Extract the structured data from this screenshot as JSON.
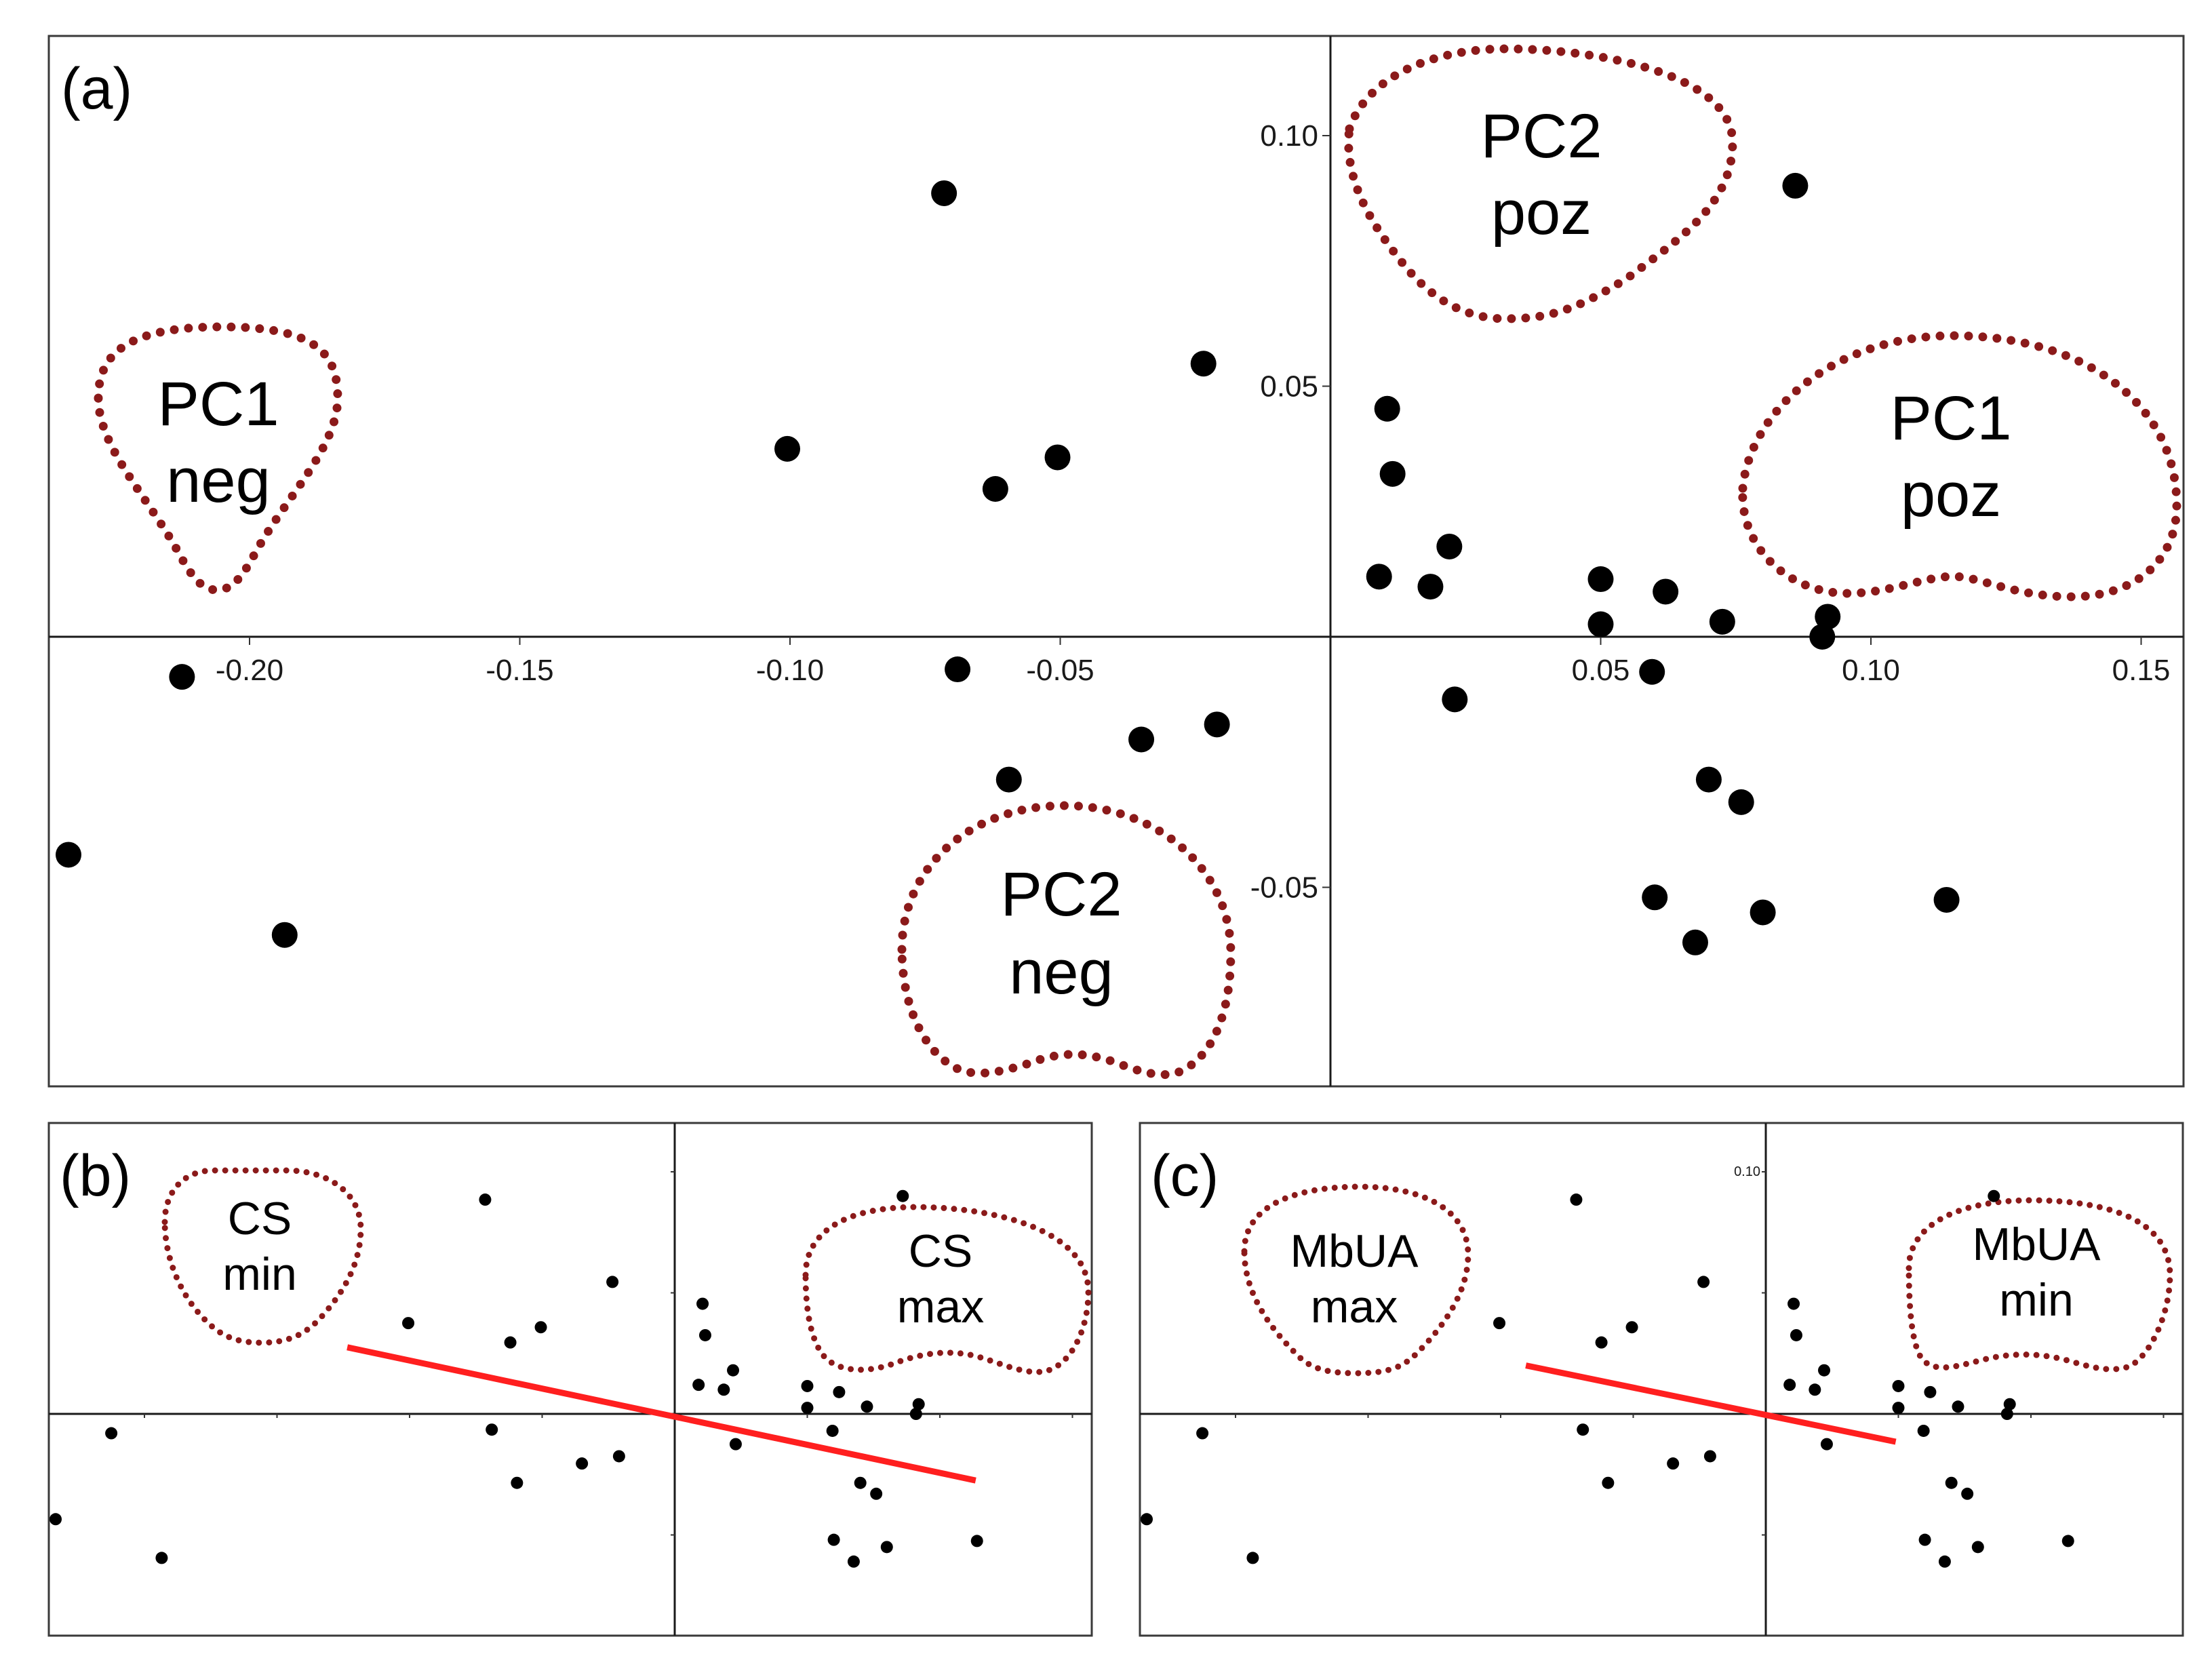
{
  "colors": {
    "outline": "#8b1a1a",
    "trend": "#ff1f1f",
    "points": "#000000"
  },
  "chart_data": [
    {
      "id": "a",
      "type": "scatter",
      "panel_label": "(a)",
      "xlim": [
        -0.24,
        0.16
      ],
      "ylim": [
        -0.09,
        0.12
      ],
      "x_ticks": [
        -0.2,
        -0.15,
        -0.1,
        -0.05,
        0.05,
        0.1,
        0.15
      ],
      "x_tick_labels": [
        "-0.20",
        "-0.15",
        "-0.10",
        "-0.05",
        "0.05",
        "0.10",
        "0.15"
      ],
      "y_ticks": [
        0.1,
        0.05,
        -0.05
      ],
      "y_tick_labels": [
        "0.10",
        "0.05",
        "-0.05"
      ],
      "points": [
        {
          "x": -0.0715,
          "y": 0.0885
        },
        {
          "x": -0.0235,
          "y": 0.0545
        },
        {
          "x": -0.1005,
          "y": 0.0375
        },
        {
          "x": -0.0505,
          "y": 0.0358
        },
        {
          "x": -0.062,
          "y": 0.0295
        },
        {
          "x": -0.2125,
          "y": -0.008
        },
        {
          "x": -0.069,
          "y": -0.0065
        },
        {
          "x": -0.035,
          "y": -0.0205
        },
        {
          "x": -0.021,
          "y": -0.0175
        },
        {
          "x": -0.0595,
          "y": -0.0285
        },
        {
          "x": -0.2335,
          "y": -0.0435
        },
        {
          "x": -0.1935,
          "y": -0.0595
        },
        {
          "x": 0.086,
          "y": 0.09
        },
        {
          "x": 0.0105,
          "y": 0.0455
        },
        {
          "x": 0.0115,
          "y": 0.0325
        },
        {
          "x": 0.022,
          "y": 0.018
        },
        {
          "x": 0.009,
          "y": 0.012
        },
        {
          "x": 0.0185,
          "y": 0.01
        },
        {
          "x": 0.05,
          "y": 0.0115
        },
        {
          "x": 0.062,
          "y": 0.009
        },
        {
          "x": 0.05,
          "y": 0.0025
        },
        {
          "x": 0.0725,
          "y": 0.003
        },
        {
          "x": 0.092,
          "y": 0.004
        },
        {
          "x": 0.091,
          "y": 0.0
        },
        {
          "x": 0.0595,
          "y": -0.007
        },
        {
          "x": 0.023,
          "y": -0.0125
        },
        {
          "x": 0.07,
          "y": -0.0285
        },
        {
          "x": 0.076,
          "y": -0.033
        },
        {
          "x": 0.06,
          "y": -0.052
        },
        {
          "x": 0.08,
          "y": -0.055
        },
        {
          "x": 0.0675,
          "y": -0.061
        },
        {
          "x": 0.114,
          "y": -0.0525
        }
      ],
      "annotations": [
        {
          "line1": "PC1",
          "line2": "neg"
        },
        {
          "line1": "PC2",
          "line2": "poz"
        },
        {
          "line1": "PC1",
          "line2": "poz"
        },
        {
          "line1": "PC2",
          "line2": "neg"
        }
      ]
    },
    {
      "id": "b",
      "type": "scatter",
      "panel_label": "(b)",
      "xlim": [
        -0.24,
        0.16
      ],
      "ylim": [
        -0.09,
        0.12
      ],
      "points_source": "same as (a)",
      "annotations": [
        {
          "line1": "CS",
          "line2": "min"
        },
        {
          "line1": "CS",
          "line2": "max"
        }
      ],
      "regression_line": {
        "x": [
          -0.1235,
          0.1135
        ],
        "y": [
          0.0275,
          -0.0275
        ]
      }
    },
    {
      "id": "c",
      "type": "scatter",
      "panel_label": "(c)",
      "xlim": [
        -0.24,
        0.16
      ],
      "ylim": [
        -0.09,
        0.12
      ],
      "points_source": "same as (a)",
      "y_tick_labels": [
        "0.10"
      ],
      "annotations": [
        {
          "line1": "MbUA",
          "line2": "max"
        },
        {
          "line1": "MbUA",
          "line2": "min"
        }
      ],
      "regression_line": {
        "x": [
          -0.0905,
          0.049
        ],
        "y": [
          0.02,
          -0.0115
        ]
      }
    }
  ]
}
